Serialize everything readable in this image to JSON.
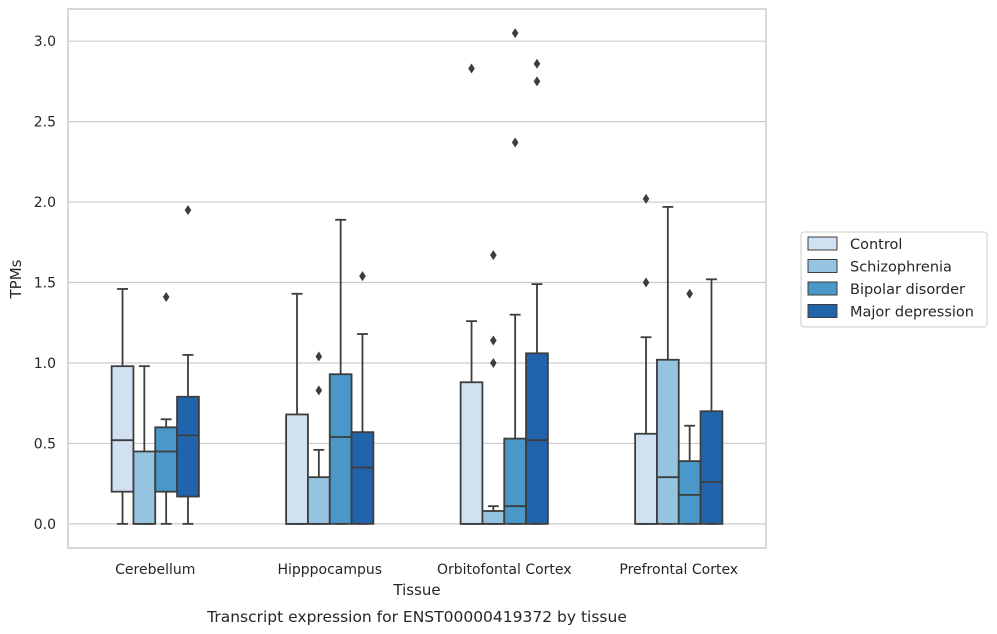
{
  "chart_data": {
    "type": "boxplot",
    "caption": "Transcript expression for ENST00000419372 by tissue",
    "xlabel": "Tissue",
    "ylabel": "TPMs",
    "ylim": [
      -0.15,
      3.2
    ],
    "yticks": [
      "0.0",
      "0.5",
      "1.0",
      "1.5",
      "2.0",
      "2.5",
      "3.0"
    ],
    "grid": "horizontal",
    "legend_position": "right",
    "categories": [
      "Cerebellum",
      "Hipppocampus",
      "Orbitofontal Cortex",
      "Prefrontal Cortex"
    ],
    "colors": [
      "#d0e1f2",
      "#94c4df",
      "#4a98c9",
      "#2164ab"
    ],
    "series": [
      {
        "name": "Control",
        "boxes": [
          {
            "whisker_low": 0.0,
            "q1": 0.2,
            "median": 0.52,
            "q3": 0.98,
            "whisker_high": 1.46,
            "outliers": []
          },
          {
            "whisker_low": 0.0,
            "q1": 0.0,
            "median": 0.0,
            "q3": 0.68,
            "whisker_high": 1.43,
            "outliers": []
          },
          {
            "whisker_low": 0.0,
            "q1": 0.0,
            "median": 0.0,
            "q3": 0.88,
            "whisker_high": 1.26,
            "outliers": [
              2.83
            ]
          },
          {
            "whisker_low": 0.0,
            "q1": 0.0,
            "median": 0.0,
            "q3": 0.56,
            "whisker_high": 1.16,
            "outliers": [
              1.5,
              2.02
            ]
          }
        ]
      },
      {
        "name": "Schizophrenia",
        "boxes": [
          {
            "whisker_low": 0.0,
            "q1": 0.0,
            "median": 0.0,
            "q3": 0.45,
            "whisker_high": 0.98,
            "outliers": []
          },
          {
            "whisker_low": 0.0,
            "q1": 0.0,
            "median": 0.0,
            "q3": 0.29,
            "whisker_high": 0.46,
            "outliers": [
              0.83,
              1.04
            ]
          },
          {
            "whisker_low": 0.0,
            "q1": 0.0,
            "median": 0.0,
            "q3": 0.08,
            "whisker_high": 0.11,
            "outliers": [
              1.0,
              1.14,
              1.67
            ]
          },
          {
            "whisker_low": 0.0,
            "q1": 0.0,
            "median": 0.29,
            "q3": 1.02,
            "whisker_high": 1.97,
            "outliers": []
          }
        ]
      },
      {
        "name": "Bipolar disorder",
        "boxes": [
          {
            "whisker_low": 0.0,
            "q1": 0.2,
            "median": 0.45,
            "q3": 0.6,
            "whisker_high": 0.65,
            "outliers": [
              1.41
            ]
          },
          {
            "whisker_low": 0.0,
            "q1": 0.0,
            "median": 0.54,
            "q3": 0.93,
            "whisker_high": 1.89,
            "outliers": []
          },
          {
            "whisker_low": 0.0,
            "q1": 0.0,
            "median": 0.11,
            "q3": 0.53,
            "whisker_high": 1.3,
            "outliers": [
              2.37,
              3.05
            ]
          },
          {
            "whisker_low": 0.0,
            "q1": 0.0,
            "median": 0.18,
            "q3": 0.39,
            "whisker_high": 0.61,
            "outliers": [
              1.43
            ]
          }
        ]
      },
      {
        "name": "Major depression",
        "boxes": [
          {
            "whisker_low": 0.0,
            "q1": 0.17,
            "median": 0.55,
            "q3": 0.79,
            "whisker_high": 1.05,
            "outliers": [
              1.95
            ]
          },
          {
            "whisker_low": 0.0,
            "q1": 0.0,
            "median": 0.35,
            "q3": 0.57,
            "whisker_high": 1.18,
            "outliers": [
              1.54
            ]
          },
          {
            "whisker_low": 0.0,
            "q1": 0.0,
            "median": 0.52,
            "q3": 1.06,
            "whisker_high": 1.49,
            "outliers": [
              2.75,
              2.86
            ]
          },
          {
            "whisker_low": 0.0,
            "q1": 0.0,
            "median": 0.26,
            "q3": 0.7,
            "whisker_high": 1.52,
            "outliers": []
          }
        ]
      }
    ]
  }
}
